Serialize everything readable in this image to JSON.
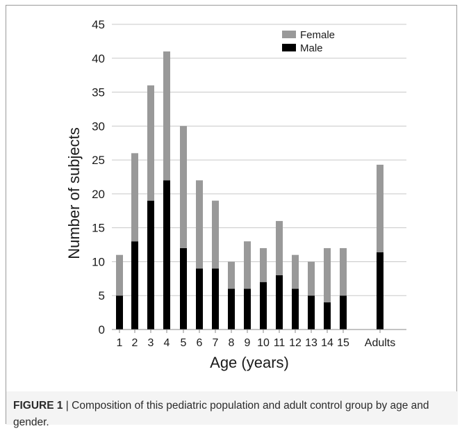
{
  "figure": {
    "caption_label": "FIGURE 1",
    "caption_separator": " | ",
    "caption_text": "Composition of this pediatric population and adult control group by age and gender."
  },
  "colors": {
    "female": "#999999",
    "male": "#000000",
    "grid": "#c8c8c8",
    "axis": "#8a8a8a",
    "text": "#1a1a1a"
  },
  "chart_data": {
    "type": "bar",
    "stacked": true,
    "title": "",
    "xlabel": "Age (years)",
    "ylabel": "Number of subjects",
    "ylim": [
      0,
      45
    ],
    "yticks": [
      0,
      5,
      10,
      15,
      20,
      25,
      30,
      35,
      40,
      45
    ],
    "grid": true,
    "legend_position": "top-right",
    "categories": [
      "1",
      "2",
      "3",
      "4",
      "5",
      "6",
      "7",
      "8",
      "9",
      "10",
      "11",
      "12",
      "13",
      "14",
      "15",
      "Adults"
    ],
    "series": [
      {
        "name": "Male",
        "color": "#000000",
        "values": [
          5,
          13,
          19,
          22,
          12,
          9,
          9,
          6,
          6,
          7,
          8,
          6,
          5,
          4,
          5,
          11.4
        ]
      },
      {
        "name": "Female",
        "color": "#999999",
        "values": [
          6,
          13,
          17,
          19,
          18,
          13,
          10,
          4,
          7,
          5,
          8,
          5,
          5,
          8,
          7,
          12.9
        ]
      }
    ],
    "legend_order": [
      "Female",
      "Male"
    ]
  }
}
